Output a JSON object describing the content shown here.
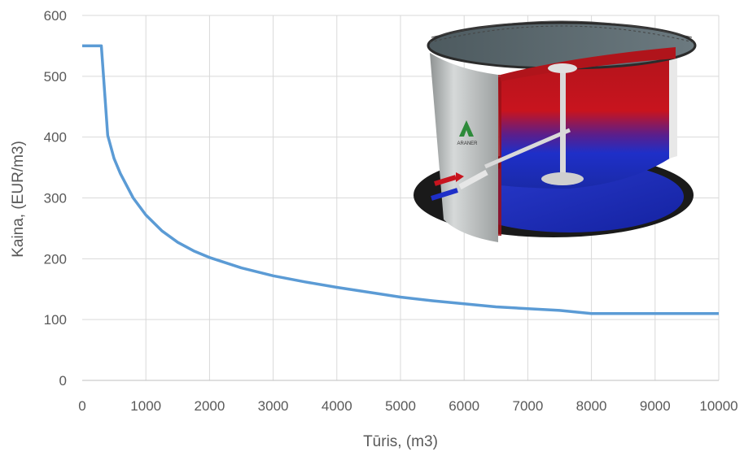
{
  "chart_data": {
    "type": "line",
    "xlabel": "Tūris, (m3)",
    "ylabel": "Kaina, (EUR/m3)",
    "xlim": [
      0,
      10000
    ],
    "ylim": [
      0,
      600
    ],
    "x_ticks": [
      0,
      1000,
      2000,
      3000,
      4000,
      5000,
      6000,
      7000,
      8000,
      9000,
      10000
    ],
    "y_ticks": [
      0,
      100,
      200,
      300,
      400,
      500,
      600
    ],
    "grid": true,
    "series": [
      {
        "color": "#5b9bd5",
        "x": [
          0,
          300,
          400,
          500,
          600,
          800,
          1000,
          1250,
          1500,
          1750,
          2000,
          2500,
          3000,
          3500,
          4000,
          4500,
          5000,
          5500,
          6000,
          6500,
          7000,
          7500,
          8000,
          9000,
          10000
        ],
        "y": [
          550,
          550,
          403,
          365,
          340,
          300,
          272,
          246,
          227,
          213,
          202,
          185,
          172,
          162,
          153,
          145,
          137,
          131,
          126,
          121,
          118,
          115,
          110,
          110,
          110
        ]
      }
    ]
  },
  "inset_image": {
    "kind": "thermal storage tank illustration",
    "logo_text": "ARANER",
    "colors": {
      "hot": "#c8141e",
      "cold": "#1e2fc8",
      "shell": "#b9bdbd"
    }
  }
}
